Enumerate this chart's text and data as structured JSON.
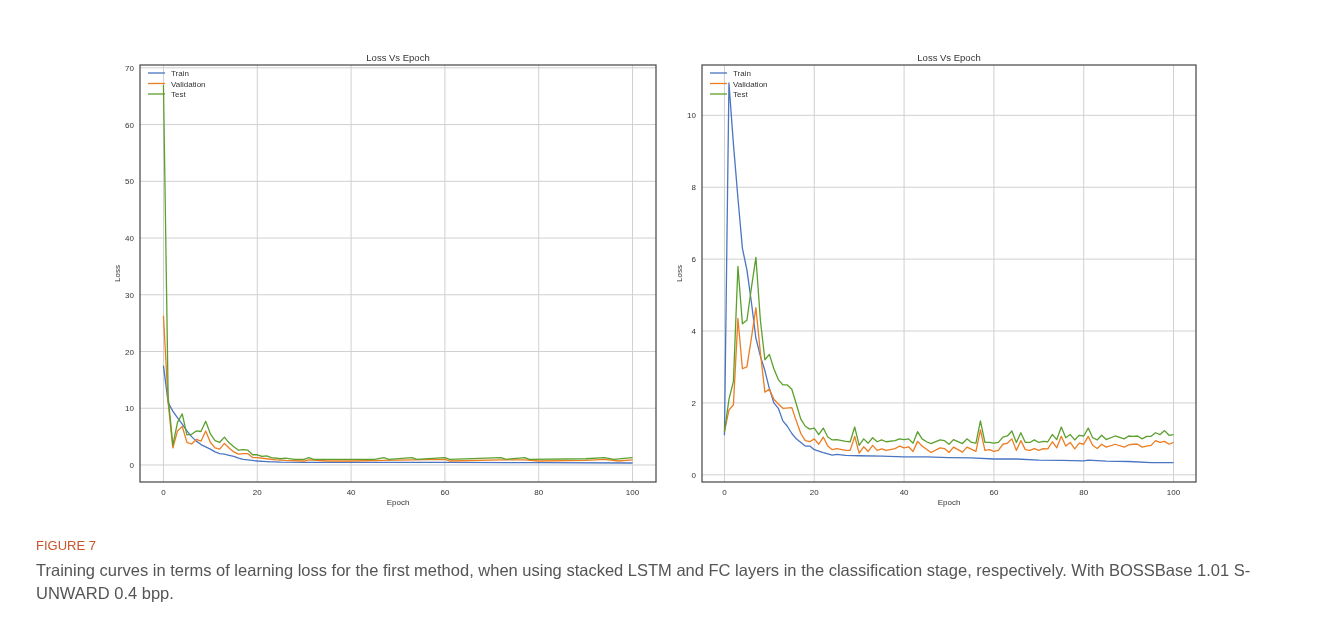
{
  "chart_data": [
    {
      "type": "line",
      "title": "Loss Vs Epoch",
      "xlabel": "Epoch",
      "ylabel": "Loss",
      "xlim": [
        -5,
        105
      ],
      "xticks": [
        0,
        20,
        40,
        60,
        80,
        100
      ],
      "ylim": [
        -3,
        70.5
      ],
      "yticks": [
        0,
        10,
        20,
        30,
        40,
        50,
        60,
        70
      ],
      "grid": true,
      "legend": "top left",
      "line_style": "solid",
      "marker": "none",
      "series": [
        {
          "name": "Train",
          "color": "#4a75c3",
          "x": [
            0,
            1,
            2,
            3,
            4,
            5,
            6,
            7,
            8,
            9,
            10,
            11,
            12,
            13,
            14,
            15,
            16,
            17,
            18,
            20,
            22,
            25,
            30,
            40,
            60,
            80,
            100
          ],
          "values": [
            17.5,
            11,
            9.5,
            8.3,
            7.2,
            6,
            5,
            4.2,
            3.6,
            3.2,
            2.8,
            2.3,
            2,
            1.9,
            1.7,
            1.5,
            1.2,
            1,
            0.9,
            0.7,
            0.6,
            0.5,
            0.45,
            0.45,
            0.45,
            0.4,
            0.35
          ]
        },
        {
          "name": "Validation",
          "color": "#ec7d22",
          "x": [
            0,
            1,
            2,
            3,
            4,
            5,
            6,
            7,
            8,
            9,
            10,
            11,
            12,
            13,
            14,
            15,
            16,
            17,
            18,
            19,
            20,
            22,
            24,
            26,
            30,
            31,
            35,
            40,
            47,
            53,
            60,
            61,
            72,
            77,
            80,
            90,
            94,
            97,
            100
          ],
          "values": [
            26.3,
            11,
            3,
            6,
            6.8,
            4,
            3.7,
            4.5,
            4.2,
            6,
            4,
            3,
            2.8,
            3.8,
            3,
            2.3,
            1.9,
            2,
            2,
            1.3,
            1.3,
            1.1,
            0.9,
            0.8,
            0.7,
            0.9,
            0.7,
            0.7,
            0.8,
            0.9,
            1,
            0.7,
            0.9,
            0.9,
            0.7,
            0.8,
            1,
            0.7,
            0.9
          ]
        },
        {
          "name": "Test",
          "color": "#5ba02e",
          "x": [
            0,
            1,
            2,
            3,
            4,
            5,
            6,
            7,
            8,
            9,
            10,
            11,
            12,
            13,
            14,
            15,
            16,
            17,
            18,
            19,
            20,
            21,
            22,
            23,
            25,
            26,
            28,
            30,
            31,
            32,
            40,
            45,
            47,
            48,
            53,
            54,
            60,
            61,
            72,
            73,
            77,
            78,
            90,
            94,
            96,
            100
          ],
          "values": [
            67,
            12,
            3.5,
            7.5,
            9,
            5.3,
            5.4,
            6,
            5.9,
            7.7,
            5.5,
            4.3,
            4,
            4.9,
            3.9,
            3.2,
            2.6,
            2.7,
            2.6,
            1.8,
            1.8,
            1.5,
            1.6,
            1.3,
            1.1,
            1.2,
            1,
            1,
            1.3,
            1,
            1,
            1,
            1.3,
            1,
            1.3,
            1,
            1.3,
            1,
            1.3,
            1,
            1.3,
            1,
            1.1,
            1.3,
            1,
            1.3
          ]
        }
      ],
      "annotations": [
        "FIGURE 7",
        "Training curves in terms of learning loss for the first method, when using stacked LSTM and FC layers in the classification stage, respectively. With BOSSBase 1.01 S-UNWARD 0.4 bpp."
      ]
    },
    {
      "type": "line",
      "title": "Loss Vs Epoch",
      "xlabel": "Epoch",
      "ylabel": "Loss",
      "xlim": [
        -5,
        105
      ],
      "xticks": [
        0,
        20,
        40,
        60,
        80,
        100
      ],
      "ylim": [
        -0.2,
        11.4
      ],
      "yticks": [
        0,
        2,
        4,
        6,
        8,
        10
      ],
      "grid": true,
      "legend": "top left",
      "line_style": "solid",
      "marker": "none",
      "series": [
        {
          "name": "Train",
          "color": "#4a75c3",
          "x": [
            0,
            1,
            2,
            3,
            4,
            5,
            6,
            7,
            8,
            9,
            10,
            11,
            12,
            13,
            14,
            15,
            16,
            17,
            18,
            19,
            20,
            22,
            24,
            25,
            27,
            30,
            35,
            40,
            45,
            50,
            55,
            60,
            65,
            70,
            75,
            80,
            81,
            85,
            90,
            95,
            100
          ],
          "values": [
            1.1,
            10.9,
            9.2,
            7.7,
            6.3,
            5.7,
            4.8,
            3.8,
            3.3,
            2.9,
            2.4,
            2.0,
            1.85,
            1.5,
            1.35,
            1.15,
            1.0,
            0.9,
            0.8,
            0.8,
            0.7,
            0.62,
            0.55,
            0.57,
            0.54,
            0.53,
            0.52,
            0.5,
            0.5,
            0.48,
            0.47,
            0.44,
            0.44,
            0.41,
            0.4,
            0.39,
            0.41,
            0.38,
            0.37,
            0.34,
            0.34
          ]
        },
        {
          "name": "Validation",
          "color": "#ec7d22",
          "x": [
            0,
            1,
            2,
            3,
            4,
            5,
            6,
            7,
            8,
            9,
            10,
            11,
            12,
            13,
            15,
            16,
            17,
            18,
            19,
            20,
            21,
            22,
            23,
            24,
            25,
            27,
            28,
            29,
            30,
            31,
            32,
            33,
            34,
            35,
            36,
            38,
            39,
            40,
            41,
            42,
            43,
            44,
            46,
            48,
            49,
            50,
            51,
            53,
            54,
            56,
            57,
            58,
            59,
            60,
            61,
            62,
            63,
            64,
            65,
            66,
            67,
            68,
            69,
            70,
            71,
            72,
            73,
            74,
            75,
            76,
            77,
            78,
            79,
            80,
            81,
            82,
            83,
            84,
            85,
            87,
            89,
            90,
            91,
            92,
            93,
            94,
            95,
            96,
            97,
            98,
            99,
            100
          ],
          "values": [
            1.2,
            1.8,
            1.95,
            4.35,
            2.95,
            3.0,
            3.8,
            4.65,
            3.4,
            2.3,
            2.38,
            2.1,
            1.97,
            1.85,
            1.87,
            1.5,
            1.15,
            0.95,
            0.92,
            1.0,
            0.85,
            1.05,
            0.8,
            0.7,
            0.73,
            0.68,
            0.68,
            1.07,
            0.6,
            0.78,
            0.65,
            0.82,
            0.68,
            0.72,
            0.68,
            0.73,
            0.8,
            0.75,
            0.78,
            0.65,
            0.93,
            0.8,
            0.62,
            0.75,
            0.73,
            0.62,
            0.77,
            0.63,
            0.77,
            0.65,
            1.25,
            0.68,
            0.7,
            0.65,
            0.68,
            0.85,
            0.88,
            1.0,
            0.68,
            0.95,
            0.7,
            0.68,
            0.73,
            0.68,
            0.73,
            0.72,
            0.92,
            0.75,
            1.07,
            0.8,
            0.9,
            0.72,
            0.88,
            0.85,
            1.07,
            0.82,
            0.73,
            0.85,
            0.77,
            0.85,
            0.77,
            0.83,
            0.85,
            0.85,
            0.77,
            0.8,
            0.82,
            0.95,
            0.9,
            0.93,
            0.85,
            0.9
          ]
        },
        {
          "name": "Test",
          "color": "#5ba02e",
          "x": [
            0,
            1,
            2,
            3,
            4,
            5,
            6,
            7,
            8,
            9,
            10,
            11,
            12,
            13,
            14,
            15,
            16,
            17,
            18,
            19,
            20,
            21,
            22,
            23,
            24,
            25,
            27,
            28,
            29,
            30,
            31,
            32,
            33,
            34,
            35,
            36,
            38,
            39,
            40,
            41,
            42,
            43,
            44,
            45,
            46,
            48,
            49,
            50,
            51,
            53,
            54,
            55,
            56,
            57,
            58,
            59,
            60,
            61,
            62,
            63,
            64,
            65,
            66,
            67,
            68,
            69,
            70,
            71,
            72,
            73,
            74,
            75,
            76,
            77,
            78,
            79,
            80,
            81,
            82,
            83,
            84,
            85,
            87,
            89,
            90,
            91,
            92,
            93,
            94,
            95,
            96,
            97,
            98,
            99,
            100
          ],
          "values": [
            1.2,
            2.1,
            2.6,
            5.8,
            4.2,
            4.3,
            5.2,
            6.05,
            4.3,
            3.2,
            3.35,
            2.95,
            2.65,
            2.5,
            2.5,
            2.38,
            1.97,
            1.55,
            1.35,
            1.27,
            1.3,
            1.12,
            1.3,
            1.05,
            0.97,
            0.98,
            0.93,
            0.92,
            1.33,
            0.82,
            1.0,
            0.88,
            1.03,
            0.92,
            0.97,
            0.92,
            0.95,
            1.0,
            0.98,
            1.0,
            0.88,
            1.2,
            1.0,
            0.92,
            0.87,
            0.97,
            0.95,
            0.85,
            0.98,
            0.87,
            1.0,
            0.9,
            0.88,
            1.5,
            0.9,
            0.9,
            0.88,
            0.9,
            1.05,
            1.08,
            1.22,
            0.9,
            1.17,
            0.9,
            0.9,
            0.97,
            0.9,
            0.93,
            0.92,
            1.12,
            0.98,
            1.33,
            1.03,
            1.12,
            0.97,
            1.1,
            1.08,
            1.3,
            1.03,
            0.97,
            1.1,
            0.98,
            1.08,
            1.0,
            1.08,
            1.07,
            1.08,
            1.0,
            1.07,
            1.07,
            1.17,
            1.12,
            1.23,
            1.1,
            1.12
          ]
        }
      ]
    }
  ]
}
